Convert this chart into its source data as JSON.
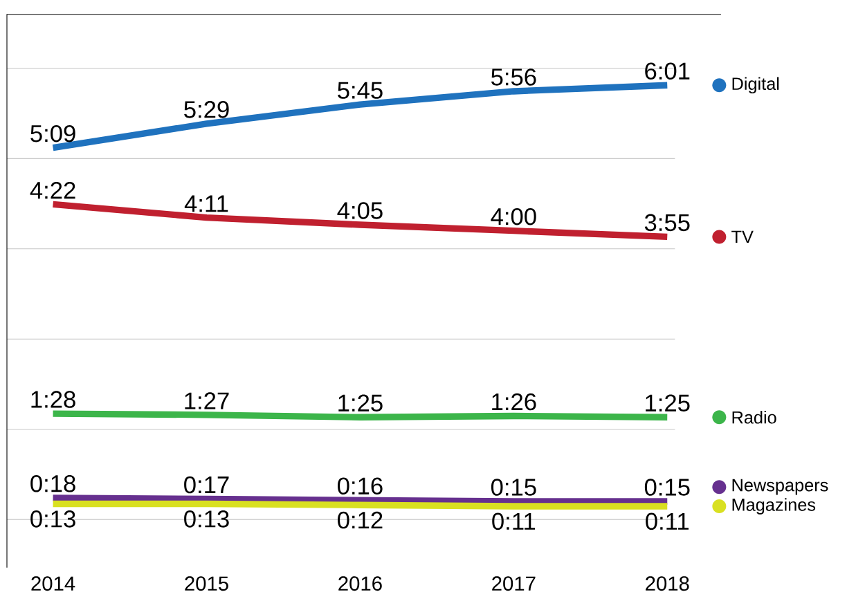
{
  "chart_data": {
    "type": "line",
    "categories": [
      "2014",
      "2015",
      "2016",
      "2017",
      "2018"
    ],
    "series": [
      {
        "name": "Digital",
        "color": "#1f72be",
        "values": [
          309,
          329,
          345,
          356,
          361
        ],
        "value_labels": [
          "5:09",
          "5:29",
          "5:45",
          "5:56",
          "6:01"
        ]
      },
      {
        "name": "TV",
        "color": "#c0202f",
        "values": [
          262,
          251,
          245,
          240,
          235
        ],
        "value_labels": [
          "4:22",
          "4:11",
          "4:05",
          "4:00",
          "3:55"
        ]
      },
      {
        "name": "Radio",
        "color": "#3cb54a",
        "values": [
          88,
          87,
          85,
          86,
          85
        ],
        "value_labels": [
          "1:28",
          "1:27",
          "1:25",
          "1:26",
          "1:25"
        ]
      },
      {
        "name": "Newspapers",
        "color": "#66308f",
        "values": [
          18,
          17,
          16,
          15,
          15
        ],
        "value_labels": [
          "0:18",
          "0:17",
          "0:16",
          "0:15",
          "0:15"
        ]
      },
      {
        "name": "Magazines",
        "color": "#d9e021",
        "values": [
          13,
          13,
          12,
          11,
          11
        ],
        "value_labels": [
          "0:13",
          "0:13",
          "0:12",
          "0:11",
          "0:11"
        ]
      }
    ],
    "ylim": [
      -40,
      420
    ],
    "yticks": [
      {
        "value": 0,
        "label": null
      },
      {
        "value": 75,
        "label": null
      },
      {
        "value": 150,
        "label": null
      },
      {
        "value": 225,
        "label": null
      },
      {
        "value": 300,
        "label": null
      },
      {
        "value": 375,
        "label": null
      }
    ],
    "grid": "y",
    "legend": "right",
    "marker": "none",
    "line_style": "solid",
    "tick_labels": "x"
  }
}
